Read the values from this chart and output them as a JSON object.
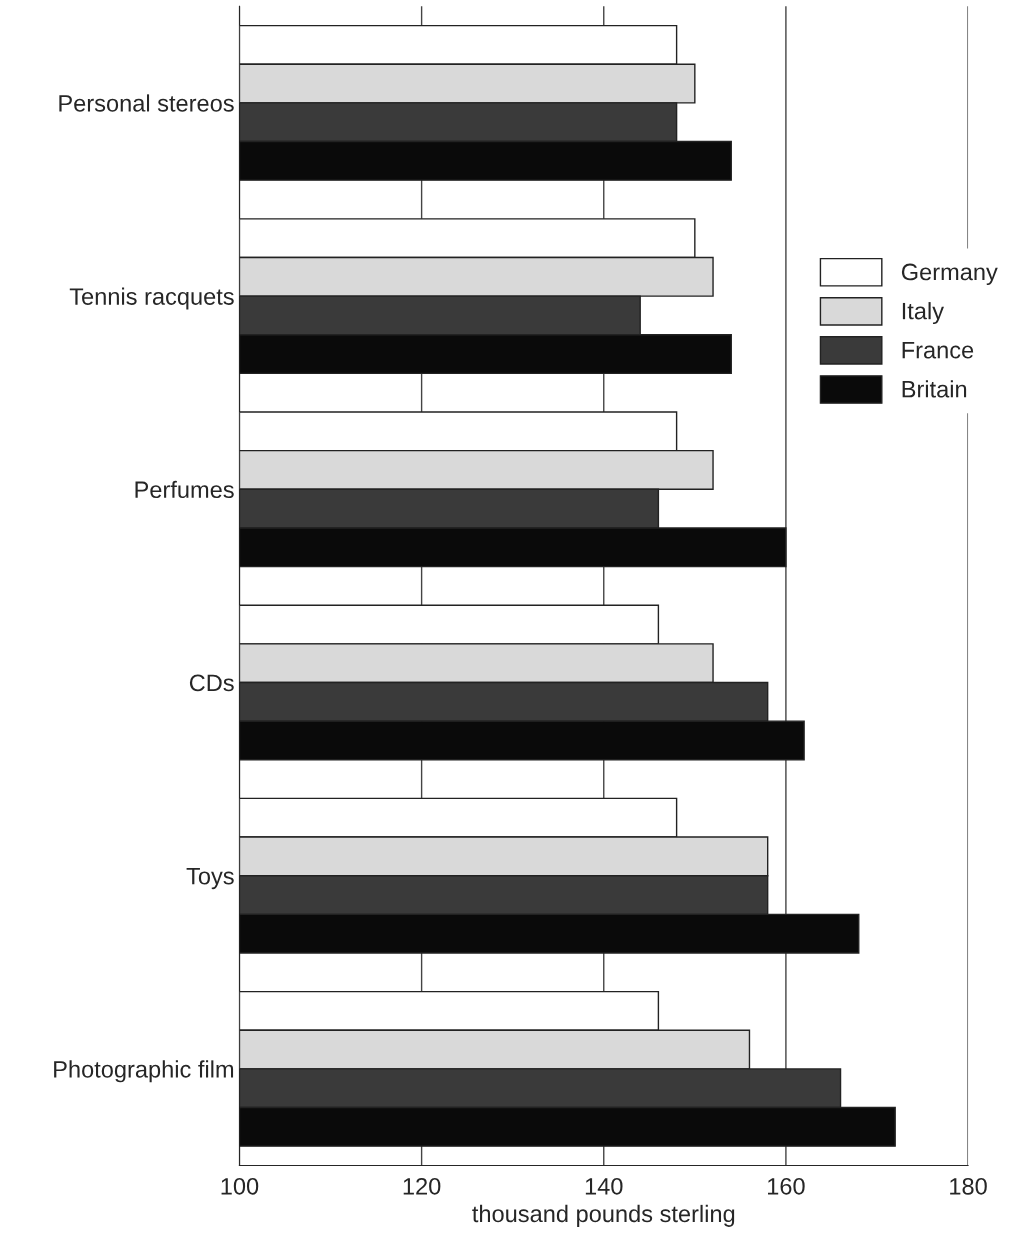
{
  "chart_data": {
    "type": "bar",
    "orientation": "horizontal",
    "xlabel": "thousand pounds sterling",
    "categories": [
      "Personal stereos",
      "Tennis racquets",
      "Perfumes",
      "CDs",
      "Toys",
      "Photographic film"
    ],
    "series": [
      {
        "name": "Germany",
        "color": "#ffffff",
        "values": [
          148,
          150,
          148,
          146,
          148,
          146
        ]
      },
      {
        "name": "Italy",
        "color": "#d9d9d9",
        "values": [
          150,
          152,
          152,
          152,
          158,
          156
        ]
      },
      {
        "name": "France",
        "color": "#3a3a3a",
        "values": [
          148,
          144,
          146,
          158,
          158,
          166
        ]
      },
      {
        "name": "Britain",
        "color": "#0a0a0a",
        "values": [
          154,
          154,
          160,
          162,
          168,
          172
        ]
      }
    ],
    "xlim": [
      100,
      180
    ],
    "xticks": [
      100,
      120,
      140,
      160,
      180
    ],
    "grid": "x",
    "legend": "right"
  }
}
